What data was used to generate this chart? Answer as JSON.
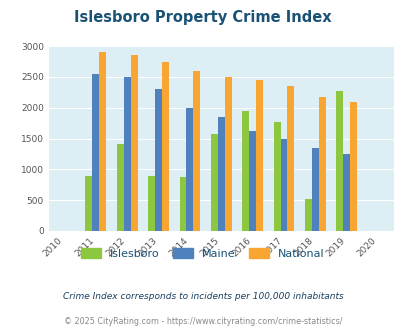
{
  "title": "Islesboro Property Crime Index",
  "all_years": [
    2010,
    2011,
    2012,
    2013,
    2014,
    2015,
    2016,
    2017,
    2018,
    2019,
    2020
  ],
  "data_years": [
    2011,
    2012,
    2013,
    2014,
    2015,
    2016,
    2017,
    2018,
    2019
  ],
  "islesboro": [
    900,
    1420,
    900,
    875,
    1575,
    1950,
    1775,
    525,
    2275
  ],
  "maine": [
    2550,
    2500,
    2300,
    2000,
    1850,
    1625,
    1500,
    1350,
    1250
  ],
  "national": [
    2900,
    2850,
    2750,
    2600,
    2500,
    2450,
    2350,
    2175,
    2100
  ],
  "ylim": [
    0,
    3000
  ],
  "color_islesboro": "#8dc63f",
  "color_maine": "#4f81bd",
  "color_national": "#f8a532",
  "bg_color": "#ddeef5",
  "title_color": "#1a5276",
  "subtitle": "Crime Index corresponds to incidents per 100,000 inhabitants",
  "footer": "© 2025 CityRating.com - https://www.cityrating.com/crime-statistics/",
  "subtitle_color": "#1a4060",
  "footer_color": "#888888",
  "bar_width": 0.22
}
